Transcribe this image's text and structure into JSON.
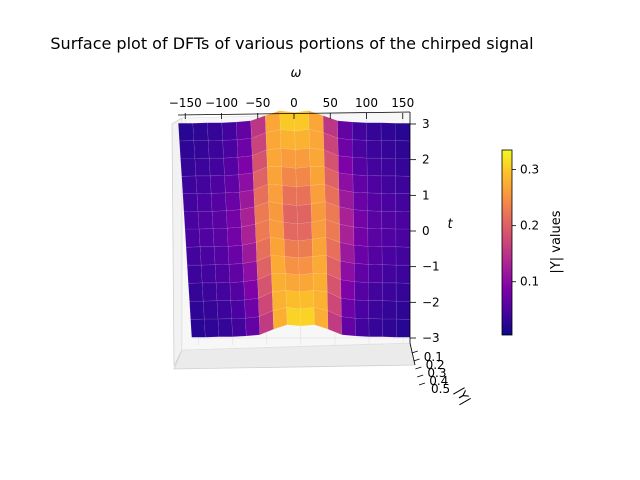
{
  "chart_data": {
    "type": "surface",
    "title": "Surface plot of DFTs of various portions of the chirped signal",
    "xlabel": "ω",
    "ylabel": "t",
    "zlabel": "|Y|",
    "xlim": [
      -160,
      160
    ],
    "ylim": [
      -3.14,
      3.14
    ],
    "zlim": [
      0.0,
      0.5
    ],
    "x_ticks": [
      "−150",
      "−100",
      "−50",
      "0",
      "50",
      "100",
      "150"
    ],
    "x_tick_values": [
      -150,
      -100,
      -50,
      0,
      50,
      100,
      150
    ],
    "y_ticks": [
      "−3",
      "−2",
      "−1",
      "0",
      "1",
      "2",
      "3"
    ],
    "y_tick_values": [
      -3,
      -2,
      -1,
      0,
      1,
      2,
      3
    ],
    "z_ticks": [
      "0.1",
      "0.2",
      "0.3",
      "0.4",
      "0.5"
    ],
    "z_tick_values": [
      0.1,
      0.2,
      0.3,
      0.4,
      0.5
    ],
    "colormap": "plasma",
    "omega": [
      -160,
      -140,
      -120,
      -100,
      -80,
      -60,
      -40,
      -20,
      0,
      20,
      40,
      60,
      80,
      100,
      120,
      140,
      160
    ],
    "t": [
      -3.0,
      -2.5,
      -2.0,
      -1.5,
      -1.0,
      -0.5,
      0.0,
      0.5,
      1.0,
      1.5,
      2.0,
      2.5,
      3.0
    ],
    "Y": [
      [
        0.02,
        0.02,
        0.03,
        0.03,
        0.05,
        0.08,
        0.22,
        0.33,
        0.3,
        0.33,
        0.22,
        0.08,
        0.05,
        0.03,
        0.03,
        0.02,
        0.02
      ],
      [
        0.02,
        0.03,
        0.03,
        0.04,
        0.05,
        0.09,
        0.24,
        0.32,
        0.28,
        0.32,
        0.24,
        0.09,
        0.05,
        0.04,
        0.03,
        0.03,
        0.02
      ],
      [
        0.03,
        0.03,
        0.04,
        0.04,
        0.06,
        0.1,
        0.26,
        0.3,
        0.26,
        0.3,
        0.26,
        0.1,
        0.06,
        0.04,
        0.04,
        0.03,
        0.03
      ],
      [
        0.03,
        0.04,
        0.04,
        0.05,
        0.07,
        0.12,
        0.27,
        0.28,
        0.24,
        0.28,
        0.27,
        0.12,
        0.07,
        0.05,
        0.04,
        0.04,
        0.03
      ],
      [
        0.04,
        0.04,
        0.05,
        0.06,
        0.08,
        0.14,
        0.28,
        0.26,
        0.22,
        0.26,
        0.28,
        0.14,
        0.08,
        0.06,
        0.05,
        0.04,
        0.04
      ],
      [
        0.04,
        0.05,
        0.05,
        0.06,
        0.09,
        0.16,
        0.29,
        0.24,
        0.2,
        0.24,
        0.29,
        0.16,
        0.09,
        0.06,
        0.05,
        0.05,
        0.04
      ],
      [
        0.05,
        0.05,
        0.06,
        0.07,
        0.1,
        0.17,
        0.29,
        0.22,
        0.18,
        0.22,
        0.29,
        0.17,
        0.1,
        0.07,
        0.06,
        0.05,
        0.05
      ],
      [
        0.04,
        0.05,
        0.05,
        0.06,
        0.09,
        0.16,
        0.29,
        0.23,
        0.19,
        0.23,
        0.29,
        0.16,
        0.09,
        0.06,
        0.05,
        0.05,
        0.04
      ],
      [
        0.04,
        0.04,
        0.05,
        0.06,
        0.08,
        0.14,
        0.28,
        0.25,
        0.21,
        0.25,
        0.28,
        0.14,
        0.08,
        0.06,
        0.05,
        0.04,
        0.04
      ],
      [
        0.03,
        0.04,
        0.04,
        0.05,
        0.07,
        0.12,
        0.27,
        0.27,
        0.23,
        0.27,
        0.27,
        0.12,
        0.07,
        0.05,
        0.04,
        0.04,
        0.03
      ],
      [
        0.03,
        0.03,
        0.04,
        0.04,
        0.06,
        0.1,
        0.25,
        0.29,
        0.25,
        0.29,
        0.25,
        0.1,
        0.06,
        0.04,
        0.04,
        0.03,
        0.03
      ],
      [
        0.02,
        0.03,
        0.03,
        0.04,
        0.05,
        0.09,
        0.23,
        0.31,
        0.27,
        0.31,
        0.23,
        0.09,
        0.05,
        0.04,
        0.03,
        0.03,
        0.02
      ],
      [
        0.02,
        0.02,
        0.03,
        0.03,
        0.05,
        0.08,
        0.21,
        0.33,
        0.29,
        0.33,
        0.21,
        0.08,
        0.05,
        0.03,
        0.03,
        0.02,
        0.02
      ]
    ],
    "colorbar": {
      "label": "|Y| values",
      "range": [
        0.005,
        0.335
      ],
      "ticks": [
        "0.1",
        "0.2",
        "0.3"
      ],
      "tick_values": [
        0.1,
        0.2,
        0.3
      ]
    }
  }
}
